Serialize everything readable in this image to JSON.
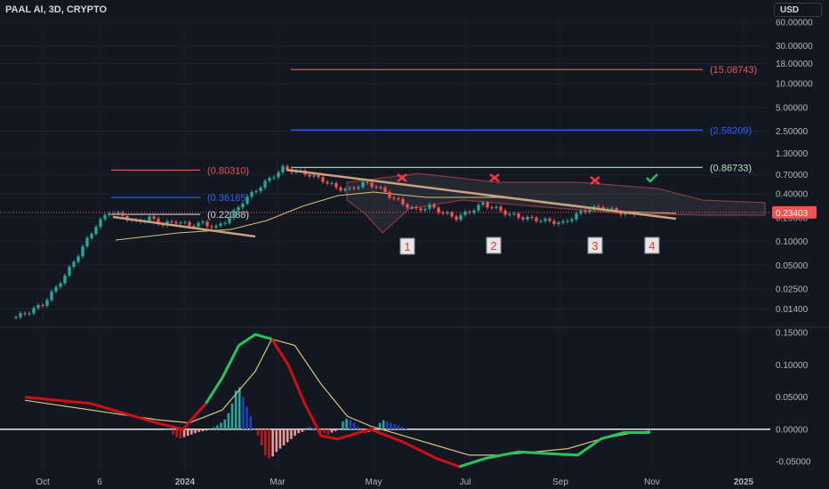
{
  "header": {
    "symbol_label": "PAAL AI, 3D, CRYPTO",
    "currency": "USD"
  },
  "colors": {
    "bg": "#131722",
    "up": "#26a69a",
    "down": "#ef5350",
    "fib_red": "#ef5350",
    "fib_blue": "#2962ff",
    "fib_green": "#b7e4c0",
    "trend": "#c8a27a",
    "macd": "#22c55e",
    "signal": "#d8c27a",
    "macd_down": "#d01010"
  },
  "chart_data": [
    {
      "type": "candlestick",
      "scale": "log",
      "price_axis_ticks": [
        "60.00000",
        "30.00000",
        "18.00000",
        "10.00000",
        "5.00000",
        "2.50000",
        "1.30000",
        "0.70000",
        "0.40000",
        "0.20000",
        "0.10000",
        "0.05000",
        "0.02500",
        "0.01400"
      ],
      "time_axis_ticks": [
        "Oct",
        "6",
        "2024",
        "Mar",
        "May",
        "Jul",
        "Sep",
        "Nov",
        "2025"
      ],
      "last_price": "0.23403",
      "price_path": [
        [
          0,
          0.011
        ],
        [
          3,
          0.013
        ],
        [
          6,
          0.016
        ],
        [
          9,
          0.026
        ],
        [
          12,
          0.045
        ],
        [
          15,
          0.085
        ],
        [
          18,
          0.16
        ],
        [
          21,
          0.24
        ],
        [
          24,
          0.21
        ],
        [
          27,
          0.175
        ],
        [
          30,
          0.2
        ],
        [
          33,
          0.165
        ],
        [
          36,
          0.18
        ],
        [
          39,
          0.16
        ],
        [
          42,
          0.17
        ],
        [
          45,
          0.15
        ],
        [
          48,
          0.2
        ],
        [
          51,
          0.32
        ],
        [
          54,
          0.45
        ],
        [
          57,
          0.62
        ],
        [
          60,
          0.85
        ],
        [
          63,
          0.78
        ],
        [
          66,
          0.7
        ],
        [
          69,
          0.6
        ],
        [
          72,
          0.48
        ],
        [
          75,
          0.45
        ],
        [
          78,
          0.55
        ],
        [
          81,
          0.5
        ],
        [
          84,
          0.38
        ],
        [
          87,
          0.3
        ],
        [
          90,
          0.25
        ],
        [
          93,
          0.28
        ],
        [
          96,
          0.23
        ],
        [
          99,
          0.2
        ],
        [
          102,
          0.24
        ],
        [
          105,
          0.3
        ],
        [
          108,
          0.26
        ],
        [
          111,
          0.22
        ],
        [
          114,
          0.2
        ],
        [
          117,
          0.19
        ],
        [
          120,
          0.18
        ],
        [
          123,
          0.17
        ],
        [
          126,
          0.22
        ],
        [
          129,
          0.26
        ],
        [
          132,
          0.27
        ],
        [
          135,
          0.24
        ],
        [
          138,
          0.22
        ],
        [
          140,
          0.23403
        ]
      ],
      "fib_levels": [
        {
          "label": "(15.08743)",
          "value": 15.08743,
          "color": "red"
        },
        {
          "label": "(2.58209)",
          "value": 2.58209,
          "color": "blue"
        },
        {
          "label": "(0.86733)",
          "value": 0.86733,
          "color": "green"
        },
        {
          "label": "(0.80310)",
          "value": 0.8031,
          "color": "red"
        },
        {
          "label": "(0.36165)",
          "value": 0.36165,
          "color": "blue"
        },
        {
          "label": "(0.22088)",
          "value": 0.22088,
          "color": "white"
        }
      ],
      "markers": [
        {
          "label": "1",
          "kind": "box"
        },
        {
          "label": "2",
          "kind": "box"
        },
        {
          "label": "3",
          "kind": "box"
        },
        {
          "label": "4",
          "kind": "box"
        }
      ],
      "signs": [
        "x",
        "x",
        "x",
        "check"
      ]
    },
    {
      "type": "macd",
      "y_ticks": [
        "0.15000",
        "0.10000",
        "0.05000",
        "0.00000",
        "-0.05000"
      ],
      "ylim": [
        -0.065,
        0.15
      ],
      "macd": [
        [
          -60,
          0.05
        ],
        [
          -50,
          0.045
        ],
        [
          -40,
          0.04
        ],
        [
          -30,
          0.025
        ],
        [
          -20,
          0.01
        ],
        [
          -12,
          0.0
        ],
        [
          -5,
          0.04
        ],
        [
          0,
          0.08
        ],
        [
          5,
          0.13
        ],
        [
          10,
          0.147
        ],
        [
          15,
          0.14
        ],
        [
          20,
          0.1
        ],
        [
          25,
          0.04
        ],
        [
          30,
          -0.01
        ],
        [
          35,
          -0.015
        ],
        [
          45,
          0.0
        ],
        [
          55,
          -0.02
        ],
        [
          65,
          -0.045
        ],
        [
          72,
          -0.058
        ],
        [
          80,
          -0.045
        ],
        [
          90,
          -0.035
        ],
        [
          100,
          -0.038
        ],
        [
          108,
          -0.04
        ],
        [
          115,
          -0.015
        ],
        [
          122,
          -0.005
        ],
        [
          130,
          -0.005
        ]
      ],
      "signal": [
        [
          -60,
          0.045
        ],
        [
          -40,
          0.03
        ],
        [
          -20,
          0.015
        ],
        [
          -10,
          0.01
        ],
        [
          0,
          0.03
        ],
        [
          10,
          0.09
        ],
        [
          15,
          0.14
        ],
        [
          22,
          0.13
        ],
        [
          30,
          0.07
        ],
        [
          38,
          0.02
        ],
        [
          45,
          0.005
        ],
        [
          55,
          -0.01
        ],
        [
          65,
          -0.025
        ],
        [
          75,
          -0.04
        ],
        [
          85,
          -0.04
        ],
        [
          95,
          -0.035
        ],
        [
          105,
          -0.03
        ],
        [
          115,
          -0.015
        ],
        [
          125,
          -0.005
        ],
        [
          130,
          -0.003
        ]
      ],
      "histogram": [
        0,
        0,
        -0.008,
        -0.012,
        -0.014,
        -0.012,
        -0.01,
        -0.008,
        -0.006,
        -0.004,
        -0.003,
        -0.002,
        0.0,
        0.003,
        0.006,
        0.01,
        0.015,
        0.025,
        0.04,
        0.06,
        0.065,
        0.05,
        0.035,
        0.02,
        0.0,
        -0.01,
        -0.025,
        -0.04,
        -0.045,
        -0.042,
        -0.035,
        -0.03,
        -0.025,
        -0.02,
        -0.015,
        -0.01,
        -0.006,
        -0.004,
        0.002,
        0.003,
        0.002,
        -0.002,
        -0.004,
        -0.006,
        -0.008,
        -0.005,
        -0.003,
        0.0,
        0.012,
        0.016,
        0.015,
        0.01,
        0.004,
        -0.002,
        -0.006,
        -0.004,
        -0.002,
        0.0,
        0.01,
        0.014,
        0.012,
        0.01,
        0.008,
        0.006,
        0.004,
        0.002
      ]
    }
  ]
}
